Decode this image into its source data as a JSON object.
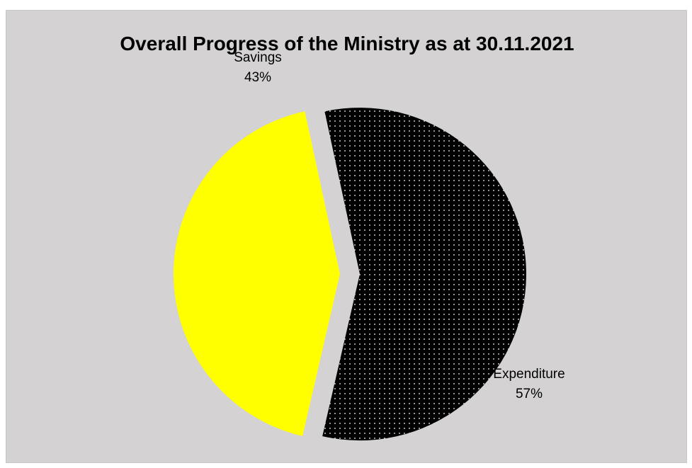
{
  "chart_data": {
    "type": "pie",
    "title": "Overall Progress of the Ministry as at 30.11.2021",
    "slices": [
      {
        "name": "Savings",
        "percent_label": "43%",
        "value": 43,
        "color": "#ffff00",
        "fill_style": "solid"
      },
      {
        "name": "Expenditure",
        "percent_label": "57%",
        "value": 57,
        "color": "#000000",
        "fill_style": "dotted"
      }
    ],
    "exploded": true,
    "legend": "none"
  },
  "colors": {
    "plot_background": "#d4d2d2",
    "savings": "#ffff00",
    "expenditure": "#000000",
    "dot_pattern": "#ffffff"
  }
}
